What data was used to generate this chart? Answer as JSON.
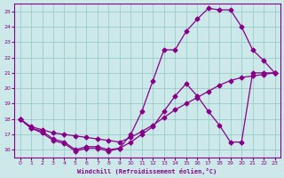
{
  "xlabel": "Windchill (Refroidissement éolien,°C)",
  "bg_color": "#cce8e8",
  "line_color": "#880088",
  "grid_color": "#99cccc",
  "xlim": [
    -0.5,
    23.5
  ],
  "ylim": [
    15.5,
    25.5
  ],
  "yticks": [
    16,
    17,
    18,
    19,
    20,
    21,
    22,
    23,
    24,
    25
  ],
  "xticks": [
    0,
    1,
    2,
    3,
    4,
    5,
    6,
    7,
    8,
    9,
    10,
    11,
    12,
    13,
    14,
    15,
    16,
    17,
    18,
    19,
    20,
    21,
    22,
    23
  ],
  "line1_x": [
    0,
    1,
    2,
    3,
    4,
    5,
    6,
    7,
    8,
    9,
    10,
    11,
    12,
    13,
    14,
    15,
    16,
    17,
    18,
    19,
    20,
    21,
    22,
    23
  ],
  "line1_y": [
    18.0,
    17.5,
    17.3,
    17.1,
    17.0,
    16.9,
    16.8,
    16.7,
    16.6,
    16.5,
    16.8,
    17.2,
    17.6,
    18.1,
    18.6,
    19.0,
    19.4,
    19.8,
    20.2,
    20.5,
    20.7,
    20.8,
    20.9,
    21.0
  ],
  "line2_x": [
    0,
    1,
    2,
    3,
    4,
    5,
    6,
    7,
    8,
    9,
    10,
    11,
    12,
    13,
    14,
    15,
    16,
    17,
    18,
    19,
    20,
    21,
    22,
    23
  ],
  "line2_y": [
    18.0,
    17.4,
    17.1,
    16.6,
    16.4,
    15.9,
    16.1,
    16.1,
    15.9,
    16.1,
    16.5,
    17.0,
    17.5,
    18.5,
    19.5,
    20.3,
    19.5,
    18.5,
    17.6,
    16.5,
    16.5,
    21.0,
    21.0,
    21.0
  ],
  "line3_x": [
    0,
    1,
    2,
    3,
    4,
    5,
    6,
    7,
    8,
    9,
    10,
    11,
    12,
    13,
    14,
    15,
    16,
    17,
    18,
    19,
    20,
    21,
    22,
    23
  ],
  "line3_y": [
    18.0,
    17.4,
    17.2,
    16.7,
    16.5,
    16.0,
    16.2,
    16.2,
    16.0,
    16.1,
    17.0,
    18.5,
    20.5,
    22.5,
    22.5,
    23.7,
    24.5,
    25.2,
    25.1,
    25.1,
    24.0,
    22.5,
    21.8,
    21.0
  ]
}
